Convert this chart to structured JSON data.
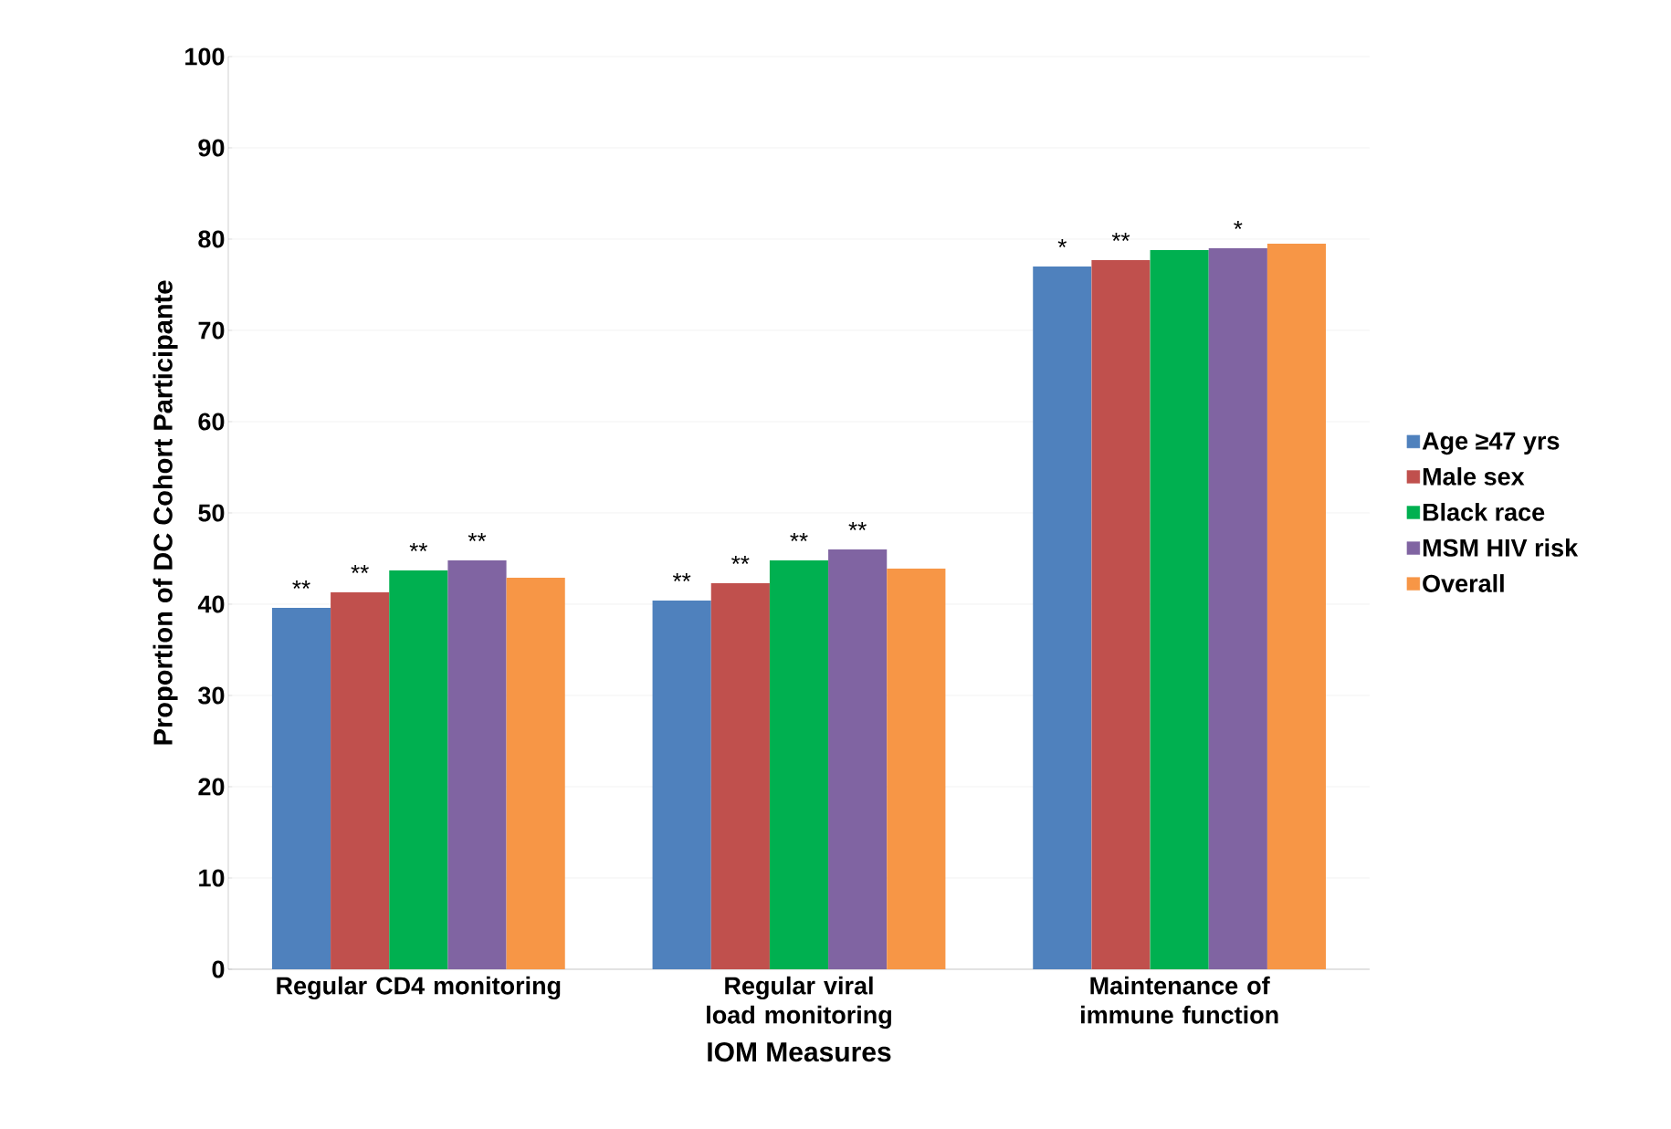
{
  "chart_data": {
    "type": "bar",
    "xlabel": "IOM Measures",
    "ylabel": "Proportion of DC Cohort Participante",
    "categories": [
      "Regular CD4 monitoring",
      "Regular viral load monitoring",
      "Maintenance of immune function"
    ],
    "series": [
      {
        "name": "Age ≥47 yrs",
        "color": "#4f81bd",
        "values": [
          39.6,
          40.4,
          77.0
        ],
        "value_labels": [
          "**",
          "**",
          "*"
        ]
      },
      {
        "name": "Male sex",
        "color": "#c0504d",
        "values": [
          41.3,
          42.3,
          77.7
        ],
        "value_labels": [
          "**",
          "**",
          "**"
        ]
      },
      {
        "name": "Black race",
        "color": "#00b050",
        "values": [
          43.7,
          44.8,
          78.8
        ],
        "value_labels": [
          "**",
          "**",
          null
        ]
      },
      {
        "name": "MSM HIV risk",
        "color": "#8064a2",
        "values": [
          44.8,
          46.0,
          79.0
        ],
        "value_labels": [
          "**",
          "**",
          "*"
        ]
      },
      {
        "name": "Overall",
        "color": "#f79646",
        "values": [
          42.9,
          43.9,
          79.5
        ]
      }
    ],
    "ylim": [
      0,
      100
    ],
    "yticks": [
      0,
      10,
      20,
      30,
      40,
      50,
      60,
      70,
      80,
      90,
      100
    ],
    "grid": "y",
    "legend": "right"
  }
}
